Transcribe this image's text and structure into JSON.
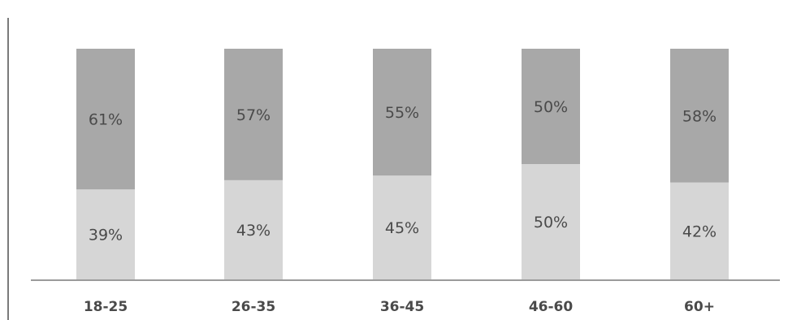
{
  "chart_data": {
    "type": "bar",
    "stacked": true,
    "categories": [
      "18-25",
      "26-35",
      "36-45",
      "46-60",
      "60+"
    ],
    "series": [
      {
        "values": [
          39,
          43,
          45,
          50,
          42
        ],
        "labels": [
          "39%",
          "43%",
          "45%",
          "50%",
          "42%"
        ],
        "color": "#d6d6d6"
      },
      {
        "values": [
          61,
          57,
          55,
          50,
          58
        ],
        "labels": [
          "61%",
          "57%",
          "55%",
          "50%",
          "58%"
        ],
        "color": "#a8a8a8"
      }
    ],
    "ylim": [
      0,
      100
    ],
    "grid": false,
    "legend": "none",
    "colors": {
      "axis": "#7a7a7a",
      "text": "#4a4a4a"
    }
  }
}
